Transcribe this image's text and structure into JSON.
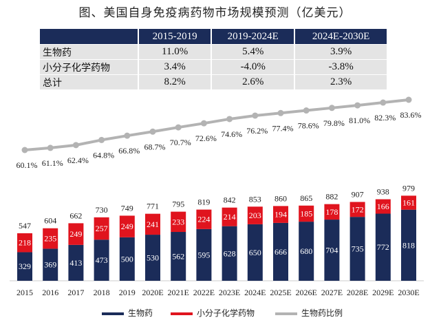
{
  "title": "图、美国自身免疫病药物市场规模预测（亿美元）",
  "cagr_table": {
    "headers": [
      "",
      "2015-2019",
      "2019-2024E",
      "2024E-2030E"
    ],
    "rows": [
      {
        "label": "生物药",
        "values": [
          "11.0%",
          "5.4%",
          "3.9%"
        ]
      },
      {
        "label": "小分子化学药物",
        "values": [
          "3.4%",
          "-4.0%",
          "-3.8%"
        ]
      },
      {
        "label": "总计",
        "values": [
          "8.2%",
          "2.6%",
          "2.3%"
        ]
      }
    ]
  },
  "chart_data": {
    "type": "bar",
    "stacked": true,
    "categories": [
      "2015",
      "2016",
      "2017",
      "2018",
      "2019",
      "2020E",
      "2021E",
      "2022E",
      "2023E",
      "2024E",
      "2025E",
      "2026E",
      "2027E",
      "2028E",
      "2029E",
      "2030E"
    ],
    "series": [
      {
        "name": "生物药",
        "color": "#1b2c59",
        "values": [
          329,
          369,
          413,
          473,
          500,
          530,
          562,
          595,
          628,
          650,
          666,
          680,
          704,
          735,
          772,
          818
        ]
      },
      {
        "name": "小分子化学药物",
        "color": "#e0141e",
        "values": [
          218,
          235,
          249,
          257,
          249,
          241,
          233,
          224,
          214,
          203,
          194,
          185,
          178,
          172,
          166,
          161
        ]
      }
    ],
    "totals": [
      547,
      604,
      662,
      730,
      749,
      771,
      795,
      819,
      842,
      853,
      860,
      865,
      882,
      907,
      938,
      979
    ],
    "line_series": {
      "name": "生物药比例",
      "color": "#b3b3b3",
      "labels": [
        "60.1%",
        "61.1%",
        "62.4%",
        "64.8%",
        "66.8%",
        "68.7%",
        "70.7%",
        "72.6%",
        "74.6%",
        "76.2%",
        "77.4%",
        "78.6%",
        "79.8%",
        "81.0%",
        "82.3%",
        "83.6%"
      ],
      "values": [
        60.1,
        61.1,
        62.4,
        64.8,
        66.8,
        68.7,
        70.7,
        72.6,
        74.6,
        76.2,
        77.4,
        78.6,
        79.8,
        81.0,
        82.3,
        83.6
      ]
    },
    "legend": [
      "生物药",
      "小分子化学药物",
      "生物药比例"
    ]
  }
}
